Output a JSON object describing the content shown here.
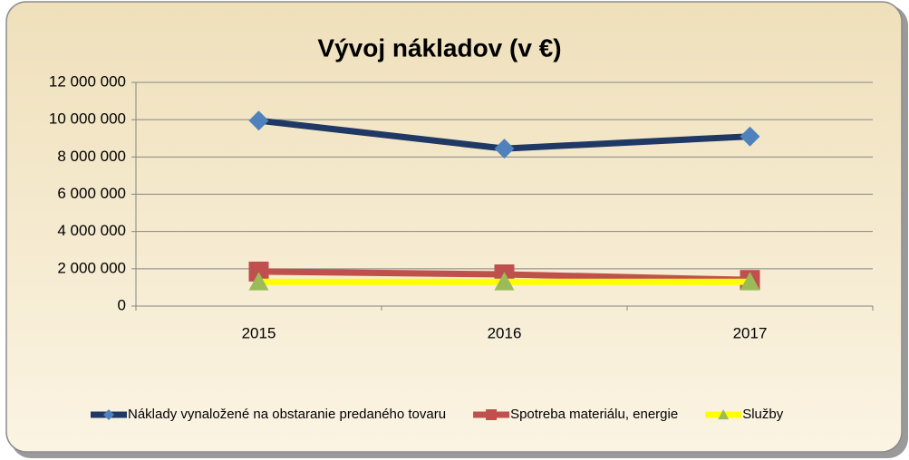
{
  "chart_data": {
    "type": "line",
    "title": "Vývoj nákladov (v €)",
    "categories": [
      "2015",
      "2016",
      "2017"
    ],
    "series": [
      {
        "name": "Náklady vynaložené na obstaranie predaného tovaru",
        "color": "#1f3864",
        "marker": "diamond",
        "marker_color": "#4f81bd",
        "values": [
          9950000,
          8450000,
          9100000
        ]
      },
      {
        "name": "Spotreba materiálu, energie",
        "color": "#c0504d",
        "marker": "square",
        "marker_color": "#c0504d",
        "values": [
          1850000,
          1700000,
          1400000
        ]
      },
      {
        "name": "Služby",
        "color": "#ffff00",
        "marker": "triangle",
        "marker_color": "#9bbb59",
        "values": [
          1300000,
          1300000,
          1300000
        ]
      }
    ],
    "ylim": [
      0,
      12000000
    ],
    "yticks": [
      0,
      {
        "value": 2000000,
        "label": "2 000 000"
      },
      {
        "value": 4000000,
        "label": "4 000 000"
      },
      {
        "value": 6000000,
        "label": "6 000 000"
      },
      {
        "value": 8000000,
        "label": "8 000 000"
      },
      {
        "value": 10000000,
        "label": "10 000 000"
      },
      {
        "value": 12000000,
        "label": "12 000 000"
      }
    ],
    "grid": true,
    "legend": "bottom"
  }
}
